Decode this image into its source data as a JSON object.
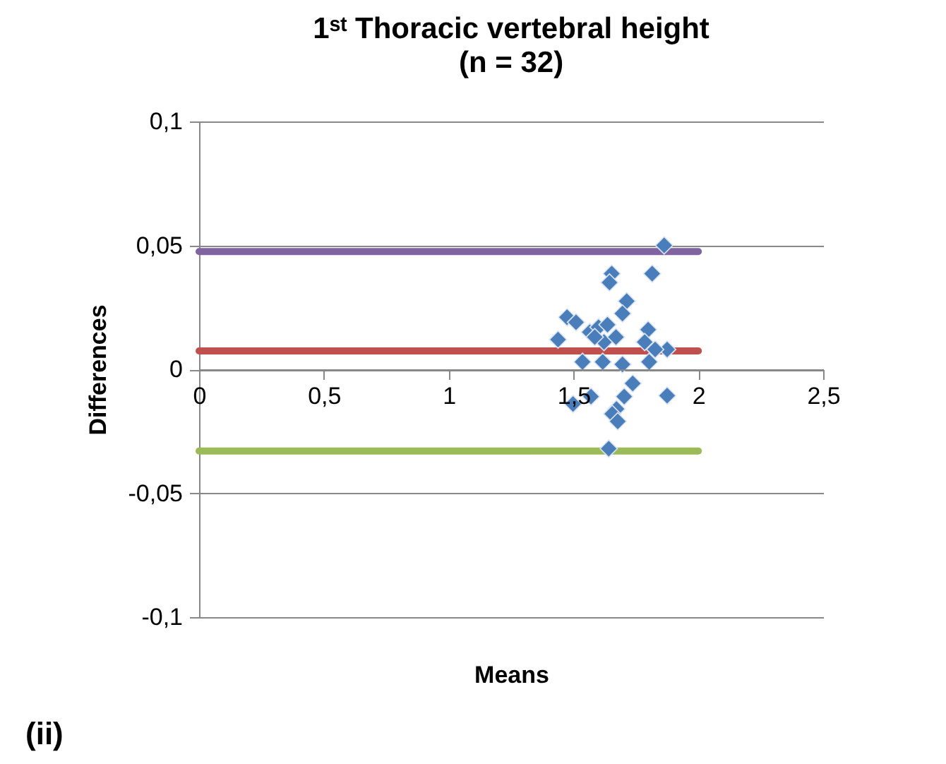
{
  "chart_data": {
    "type": "scatter",
    "title": "1ˢᵗ Thoracic vertebral height",
    "subtitle": "(n = 32)",
    "xlabel": "Means",
    "ylabel": "Differences",
    "annotations": [
      "(ii)"
    ],
    "series": [
      {
        "color": "#4a7ebb",
        "marker": "diamond",
        "x": [
          1.863,
          1.815,
          1.653,
          1.644,
          1.713,
          1.696,
          1.474,
          1.51,
          1.438,
          1.565,
          1.6,
          1.636,
          1.799,
          1.785,
          1.622,
          1.875,
          1.827,
          1.536,
          1.617,
          1.696,
          1.803,
          1.737,
          1.703,
          1.875,
          1.498,
          1.57,
          1.672,
          1.655,
          1.677,
          1.641,
          1.585,
          1.67
        ],
        "values": [
          0.05,
          0.0386,
          0.0386,
          0.035,
          0.0275,
          0.0225,
          0.021,
          0.019,
          0.012,
          0.015,
          0.017,
          0.018,
          0.016,
          0.011,
          0.011,
          0.008,
          0.008,
          0.003,
          0.003,
          0.002,
          0.003,
          -0.0057,
          -0.011,
          -0.0106,
          -0.014,
          -0.011,
          -0.016,
          -0.018,
          -0.021,
          -0.032,
          0.013,
          0.013
        ]
      },
      {
        "type": "line",
        "color": "#8064a2",
        "x": [
          0,
          2
        ],
        "values": [
          0.0475,
          0.0475
        ]
      },
      {
        "type": "line",
        "color": "#c0504d",
        "x": [
          0,
          2
        ],
        "values": [
          0.0074,
          0.0074
        ]
      },
      {
        "type": "line",
        "color": "#9bbb59",
        "x": [
          0,
          2
        ],
        "values": [
          -0.033,
          -0.033
        ]
      }
    ],
    "xlim": [
      0,
      2.5
    ],
    "xticks": [
      0,
      {
        "value": 0.5,
        "label": "0,5"
      },
      1,
      {
        "value": 1.5,
        "label": "1,5"
      },
      2,
      {
        "value": 2.5,
        "label": "2,5"
      }
    ],
    "ylim": [
      -0.1,
      0.1
    ],
    "yticks": [
      {
        "value": -0.1,
        "label": "-0,1"
      },
      {
        "value": -0.05,
        "label": "-0,05"
      },
      0,
      {
        "value": 0.05,
        "label": "0,05"
      },
      {
        "value": 0.1,
        "label": "0,1"
      }
    ],
    "grid": "y",
    "line_style": "solid"
  }
}
